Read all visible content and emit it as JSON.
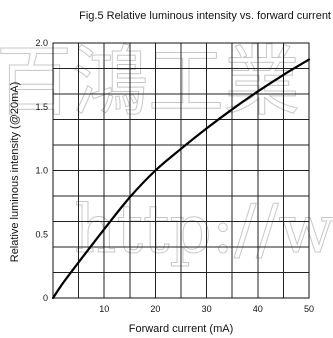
{
  "chart_data": {
    "type": "line",
    "title": "Fig.5 Relative luminous intensity vs. forward current",
    "xlabel": "Forward current (mA)",
    "ylabel": "Relative luminous intensity (@20mA)",
    "xlim": [
      0,
      50
    ],
    "ylim": [
      0,
      2.0
    ],
    "x_ticks": [
      10,
      20,
      30,
      40,
      50
    ],
    "y_ticks": [
      0,
      0.5,
      1.0,
      1.5,
      2.0
    ],
    "x_tick_labels": [
      "10",
      "20",
      "30",
      "40",
      "50"
    ],
    "y_tick_labels": [
      "0",
      "0.5",
      "1.0",
      "1.5",
      "2.0"
    ],
    "grid": true,
    "series": [
      {
        "x": [
          0,
          2,
          5,
          10,
          15,
          20,
          25,
          30,
          35,
          40,
          45,
          50
        ],
        "values": [
          0,
          0.12,
          0.28,
          0.54,
          0.79,
          1.0,
          1.17,
          1.33,
          1.48,
          1.62,
          1.75,
          1.87
        ]
      }
    ]
  },
  "watermark": {
    "line1": "百鴻工業",
    "line2": "http://w"
  }
}
